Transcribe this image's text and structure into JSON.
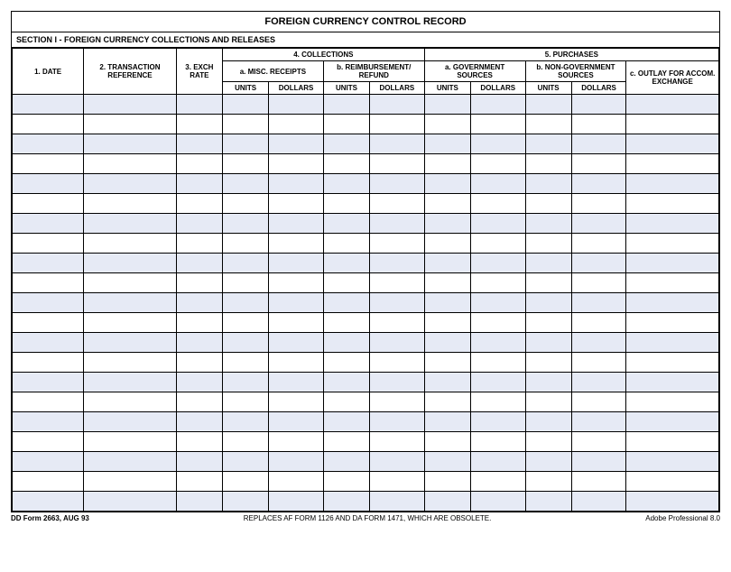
{
  "title": "FOREIGN CURRENCY CONTROL RECORD",
  "section": "SECTION I - FOREIGN CURRENCY COLLECTIONS AND RELEASES",
  "headers": {
    "date": "1.  DATE",
    "ref": "2. TRANSACTION REFERENCE",
    "rate": "3. EXCH RATE",
    "collections": "4.  COLLECTIONS",
    "purchases": "5.  PURCHASES",
    "misc": "a.  MISC. RECEIPTS",
    "reimb": "b.  REIMBURSEMENT/ REFUND",
    "gov": "a.  GOVERNMENT SOURCES",
    "nongov": "b.  NON-GOVERNMENT SOURCES",
    "outlay": "c.  OUTLAY FOR ACCOM. EXCHANGE",
    "units": "UNITS",
    "dollars": "DOLLARS"
  },
  "footer": {
    "left": "DD Form 2663, AUG 93",
    "center": "REPLACES AF FORM 1126 AND DA FORM 1471, WHICH ARE OBSOLETE.",
    "right": "Adobe Professional 8.0"
  },
  "row_count": 21,
  "colors": {
    "shade": "#e6eaf5",
    "border": "#000000",
    "background": "#ffffff"
  }
}
